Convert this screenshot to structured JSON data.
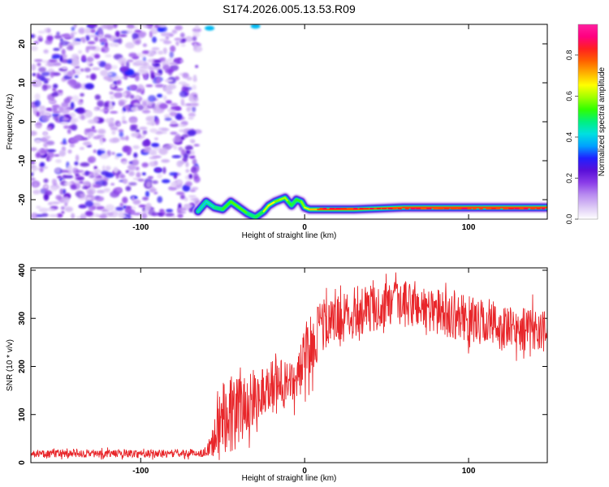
{
  "title": "S174.2026.005.13.53.R09",
  "chart_data": [
    {
      "type": "heatmap",
      "name": "spectrogram",
      "xlabel": "Height of straight line (km)",
      "ylabel": "Frequency (Hz)",
      "xlim": [
        -167,
        148
      ],
      "ylim": [
        -25,
        25
      ],
      "xticks": [
        -100,
        0,
        100
      ],
      "yticks": [
        -20,
        -10,
        0,
        10,
        20
      ],
      "colorbar": {
        "label": "Normalized spectral amplitude",
        "range": [
          0,
          0.95
        ],
        "ticks": [
          0.0,
          0.2,
          0.4,
          0.6,
          0.8
        ],
        "colors": [
          "#ffffff",
          "#dcc8f5",
          "#b98cf0",
          "#8a3ce8",
          "#5a10d8",
          "#2020ff",
          "#00a0ff",
          "#00e0e0",
          "#00f080",
          "#30ff00",
          "#a0ff00",
          "#ffff00",
          "#ffb000",
          "#ff6000",
          "#ff2020",
          "#ff0080",
          "#ff1fa0"
        ]
      },
      "noise_region": {
        "x_range": [
          -167,
          -65
        ],
        "freq_range": [
          -25,
          25
        ],
        "amplitude_range": [
          0.0,
          0.25
        ]
      },
      "ridge": {
        "x": [
          -65,
          -60,
          -55,
          -50,
          -45,
          -40,
          -35,
          -30,
          -25,
          -22,
          -18,
          -15,
          -12,
          -10,
          -8,
          -5,
          -2,
          0,
          3,
          8,
          15,
          30,
          60,
          100,
          148
        ],
        "freq": [
          -23.0,
          -20.5,
          -22.0,
          -22.5,
          -20.5,
          -22.0,
          -23.5,
          -24.5,
          -23.0,
          -21.5,
          -20.5,
          -20.0,
          -19.5,
          -20.5,
          -21.5,
          -20.0,
          -20.5,
          -22.0,
          -22.5,
          -22.5,
          -22.5,
          -22.5,
          -22.0,
          -22.0,
          -22.0
        ],
        "amplitude": [
          0.35,
          0.45,
          0.4,
          0.55,
          0.5,
          0.6,
          0.5,
          0.45,
          0.55,
          0.7,
          0.6,
          0.55,
          0.65,
          0.55,
          0.5,
          0.5,
          0.55,
          0.6,
          0.65,
          0.75,
          0.8,
          0.75,
          0.8,
          0.8,
          0.8
        ]
      }
    },
    {
      "type": "line",
      "name": "snr",
      "xlabel": "Height of straight line (km)",
      "ylabel": "SNR (10 * v/v)",
      "xlim": [
        -167,
        148
      ],
      "ylim": [
        0,
        405
      ],
      "xticks": [
        -100,
        0,
        100
      ],
      "yticks": [
        0,
        100,
        200,
        300,
        400
      ],
      "color": "#e8262a",
      "series": [
        {
          "name": "SNR",
          "x": [
            -167,
            -140,
            -110,
            -80,
            -60,
            -55,
            -52,
            -48,
            -45,
            -40,
            -35,
            -30,
            -25,
            -20,
            -15,
            -10,
            -5,
            0,
            5,
            10,
            15,
            20,
            30,
            40,
            50,
            60,
            70,
            80,
            90,
            100,
            110,
            120,
            130,
            140,
            148
          ],
          "y": [
            18,
            18,
            19,
            19,
            20,
            60,
            90,
            120,
            100,
            110,
            120,
            140,
            150,
            165,
            170,
            160,
            175,
            215,
            250,
            290,
            285,
            300,
            310,
            320,
            325,
            330,
            325,
            315,
            305,
            300,
            290,
            280,
            275,
            280,
            270
          ],
          "noise_amplitude": [
            10,
            10,
            10,
            10,
            10,
            70,
            100,
            110,
            100,
            90,
            80,
            70,
            70,
            65,
            60,
            55,
            60,
            75,
            80,
            75,
            65,
            60,
            60,
            60,
            60,
            60,
            60,
            60,
            60,
            60,
            60,
            60,
            55,
            55,
            55
          ]
        }
      ]
    }
  ]
}
